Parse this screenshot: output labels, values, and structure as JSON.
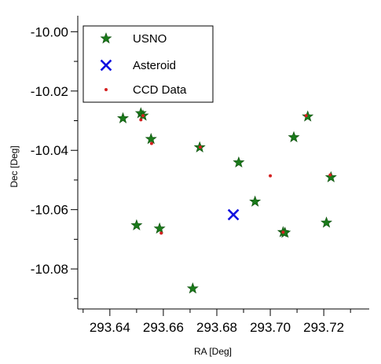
{
  "chart_data": {
    "type": "scatter",
    "title": "",
    "xlabel": "RA [Deg]",
    "ylabel": "Dec [Deg]",
    "xlim": [
      293.628,
      293.737
    ],
    "ylim": [
      -10.0935,
      -9.9946
    ],
    "xticks": [
      293.64,
      293.66,
      293.68,
      293.7,
      293.72
    ],
    "xtick_labels": [
      "293.64",
      "293.66",
      "293.68",
      "293.70",
      "293.72"
    ],
    "yticks": [
      -10.0,
      -10.02,
      -10.04,
      -10.06,
      -10.08
    ],
    "ytick_labels": [
      "-10.00",
      "-10.02",
      "-10.04",
      "-10.06",
      "-10.08"
    ],
    "grid": false,
    "legend_position": "top-left",
    "series": [
      {
        "name": "USNO",
        "marker": "star",
        "color": "#1a7a1a",
        "x": [
          293.6449,
          293.6516,
          293.6524,
          293.6554,
          293.65,
          293.6586,
          293.6736,
          293.671,
          293.6882,
          293.6943,
          293.7048,
          293.7055,
          293.7088,
          293.714,
          293.7227,
          293.721
        ],
        "y": [
          -10.0292,
          -10.0275,
          -10.0283,
          -10.0362,
          -10.0653,
          -10.0664,
          -10.039,
          -10.0866,
          -10.0441,
          -10.0573,
          -10.0676,
          -10.0678,
          -10.0356,
          -10.0286,
          -10.0491,
          -10.0644
        ]
      },
      {
        "name": "Asteroid",
        "marker": "x",
        "color": "#1010e0",
        "x": [
          293.6862
        ],
        "y": [
          -10.0617
        ]
      },
      {
        "name": "CCD Data",
        "marker": "dot",
        "color": "#d42020",
        "x": [
          293.6516,
          293.6524,
          293.6556,
          293.6592,
          293.6738,
          293.7,
          293.7048,
          293.7134,
          293.7224
        ],
        "y": [
          -10.0297,
          -10.0283,
          -10.0377,
          -10.0679,
          -10.0389,
          -10.0486,
          -10.0676,
          -10.0283,
          -10.0483
        ]
      }
    ]
  }
}
